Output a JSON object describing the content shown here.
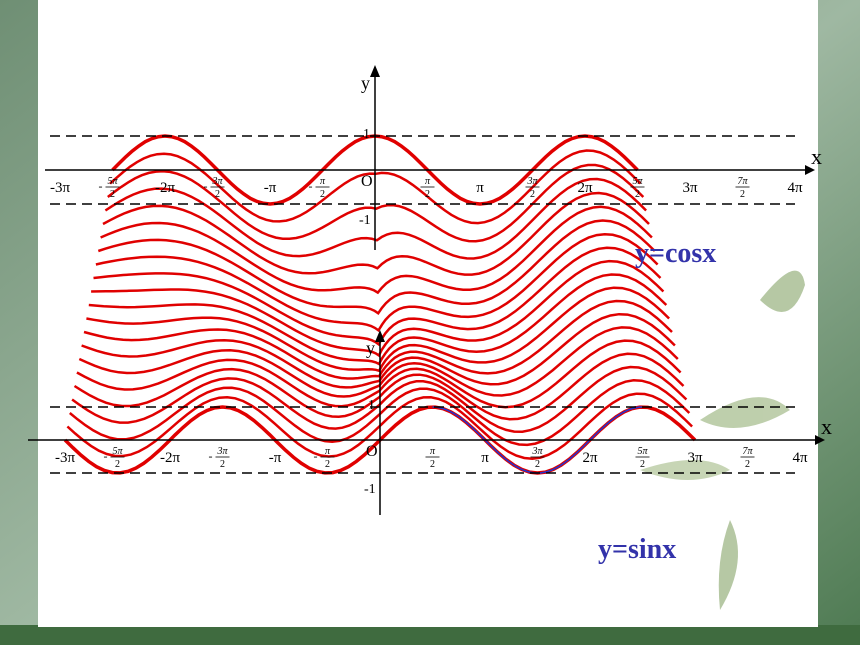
{
  "graphs": [
    {
      "caption": "y=cosx",
      "x_axis_label": "x",
      "y_axis_label": "y",
      "origin_label": "O",
      "y_labels": [
        "1",
        "-1"
      ],
      "x_labels": [
        "-3π",
        {
          "sign": "-",
          "num": "5π",
          "den": "2"
        },
        "-2π",
        {
          "sign": "-",
          "num": "3π",
          "den": "2"
        },
        "-π",
        {
          "sign": "-",
          "num": "π",
          "den": "2"
        },
        {
          "sign": "",
          "num": "π",
          "den": "2"
        },
        "π",
        {
          "sign": "",
          "num": "3π",
          "den": "2"
        },
        "2π",
        {
          "sign": "",
          "num": "5π",
          "den": "2"
        },
        "3π",
        {
          "sign": "",
          "num": "7π",
          "den": "2"
        },
        "4π"
      ]
    },
    {
      "caption": "y=sinx",
      "x_axis_label": "x",
      "y_axis_label": "y",
      "origin_label": "O",
      "y_labels": [
        "1",
        "-1"
      ],
      "x_labels": [
        "-3π",
        {
          "sign": "-",
          "num": "5π",
          "den": "2"
        },
        "-2π",
        {
          "sign": "-",
          "num": "3π",
          "den": "2"
        },
        "-π",
        {
          "sign": "-",
          "num": "π",
          "den": "2"
        },
        {
          "sign": "",
          "num": "π",
          "den": "2"
        },
        "π",
        {
          "sign": "",
          "num": "3π",
          "den": "2"
        },
        "2π",
        {
          "sign": "",
          "num": "5π",
          "den": "2"
        },
        "3π",
        {
          "sign": "",
          "num": "7π",
          "den": "2"
        },
        "4π"
      ]
    }
  ]
}
